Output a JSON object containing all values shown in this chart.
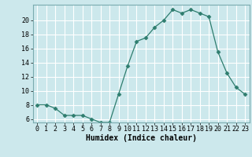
{
  "x": [
    0,
    1,
    2,
    3,
    4,
    5,
    6,
    7,
    8,
    9,
    10,
    11,
    12,
    13,
    14,
    15,
    16,
    17,
    18,
    19,
    20,
    21,
    22,
    23
  ],
  "y": [
    8,
    8,
    7.5,
    6.5,
    6.5,
    6.5,
    6,
    5.5,
    5.5,
    9.5,
    13.5,
    17,
    17.5,
    19,
    20,
    21.5,
    21,
    21.5,
    21,
    20.5,
    15.5,
    12.5,
    10.5,
    9.5
  ],
  "line_color": "#2e7d6e",
  "marker": "D",
  "marker_size": 2.5,
  "bg_color": "#cce8ec",
  "grid_color": "#ffffff",
  "xlabel": "Humidex (Indice chaleur)",
  "xlim": [
    -0.5,
    23.5
  ],
  "ylim": [
    5.5,
    22.2
  ],
  "yticks": [
    6,
    8,
    10,
    12,
    14,
    16,
    18,
    20
  ],
  "xticks": [
    0,
    1,
    2,
    3,
    4,
    5,
    6,
    7,
    8,
    9,
    10,
    11,
    12,
    13,
    14,
    15,
    16,
    17,
    18,
    19,
    20,
    21,
    22,
    23
  ],
  "xlabel_fontsize": 7,
  "tick_fontsize": 6
}
